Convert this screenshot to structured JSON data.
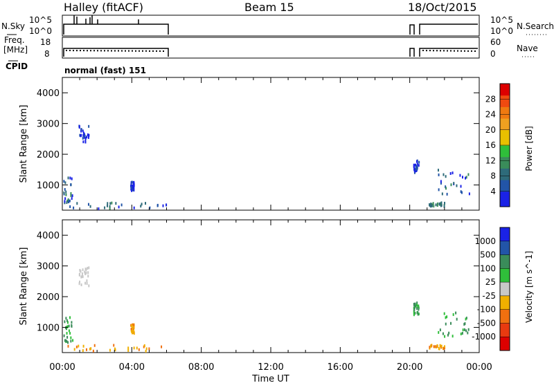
{
  "header": {
    "radar": "Halley (fitACF)",
    "beam": "Beam 15",
    "date": "18/Oct/2015"
  },
  "top_panels": {
    "nsky_label": "N.Sky",
    "nsky_ticks": [
      "10^5",
      "10^0"
    ],
    "nsearch_label": "N.Search",
    "nsearch_ticks": [
      "10^5",
      "10^0"
    ],
    "freq_label_line1": "Freq.",
    "freq_label_line2": "[MHz]",
    "freq_ticks": [
      "18",
      "8"
    ],
    "nave_label": "Nave",
    "nave_ticks": [
      "60",
      "0"
    ],
    "cpid_label": "CPID",
    "cpid_value": "normal (fast) 151"
  },
  "chart_data": [
    {
      "type": "heatmap",
      "title": "",
      "xlabel": "",
      "ylabel": "Slant Range [km]",
      "yticks": [
        "1000",
        "2000",
        "3000",
        "4000"
      ],
      "ylim": [
        180,
        4500
      ],
      "xlim": [
        0,
        24
      ],
      "colorbar_label": "Power [dB]",
      "colorbar_ticks": [
        "4",
        "8",
        "12",
        "16",
        "20",
        "24",
        "28"
      ],
      "colorbar_range": [
        0,
        32
      ],
      "colors": [
        "#1a22e6",
        "#2255a8",
        "#2e6b7a",
        "#3a8c5a",
        "#2fbf3a",
        "#e8c000",
        "#f09a20",
        "#f06a10",
        "#e83a10",
        "#dd0000"
      ],
      "scatter_groups": [
        {
          "time": [
            0.9,
            1.5
          ],
          "range": [
            2350,
            2950
          ],
          "level": "blue-low"
        },
        {
          "time": [
            0.05,
            0.6
          ],
          "range": [
            400,
            1350
          ],
          "level": "mixed"
        },
        {
          "time": [
            0.1,
            6.0
          ],
          "range": [
            220,
            420
          ],
          "level": "mixed"
        },
        {
          "time": [
            3.9,
            4.1
          ],
          "range": [
            800,
            1100
          ],
          "level": "blue-low"
        },
        {
          "time": [
            20.2,
            20.5
          ],
          "range": [
            1400,
            1800
          ],
          "level": "blue-low"
        },
        {
          "time": [
            21.6,
            23.4
          ],
          "range": [
            700,
            1500
          ],
          "level": "mixed"
        },
        {
          "time": [
            21.0,
            22.0
          ],
          "range": [
            300,
            420
          ],
          "level": "green"
        }
      ]
    },
    {
      "type": "heatmap",
      "title": "",
      "xlabel": "Time UT",
      "ylabel": "Slant Range [km]",
      "xticks": [
        "00:00",
        "04:00",
        "08:00",
        "12:00",
        "16:00",
        "20:00",
        "00:00"
      ],
      "yticks": [
        "1000",
        "2000",
        "3000",
        "4000"
      ],
      "ylim": [
        180,
        4500
      ],
      "xlim": [
        0,
        24
      ],
      "colorbar_label": "Velocity [m s^-1]",
      "colorbar_ticks": [
        "1000",
        "500",
        "100",
        "25",
        "-25",
        "-100",
        "-500",
        "-1000"
      ],
      "colors": [
        "#1a22e6",
        "#2255a8",
        "#3a8c5a",
        "#2fbf3a",
        "#c8c8c8",
        "#f0b000",
        "#f07010",
        "#e83a10",
        "#dd0000"
      ],
      "scatter_groups": [
        {
          "time": [
            0.9,
            1.5
          ],
          "range": [
            2350,
            2950
          ],
          "level": "gray"
        },
        {
          "time": [
            0.05,
            0.6
          ],
          "range": [
            400,
            1350
          ],
          "level": "green"
        },
        {
          "time": [
            0.1,
            6.0
          ],
          "range": [
            220,
            420
          ],
          "level": "orange"
        },
        {
          "time": [
            3.9,
            4.1
          ],
          "range": [
            800,
            1100
          ],
          "level": "orange"
        },
        {
          "time": [
            20.2,
            20.5
          ],
          "range": [
            1400,
            1800
          ],
          "level": "green"
        },
        {
          "time": [
            21.6,
            23.4
          ],
          "range": [
            700,
            1500
          ],
          "level": "green"
        },
        {
          "time": [
            21.0,
            22.0
          ],
          "range": [
            300,
            420
          ],
          "level": "orange"
        }
      ]
    }
  ],
  "tick_marks": {
    "four_hour_positions": [
      0,
      4,
      8,
      12,
      16,
      20,
      24
    ]
  }
}
